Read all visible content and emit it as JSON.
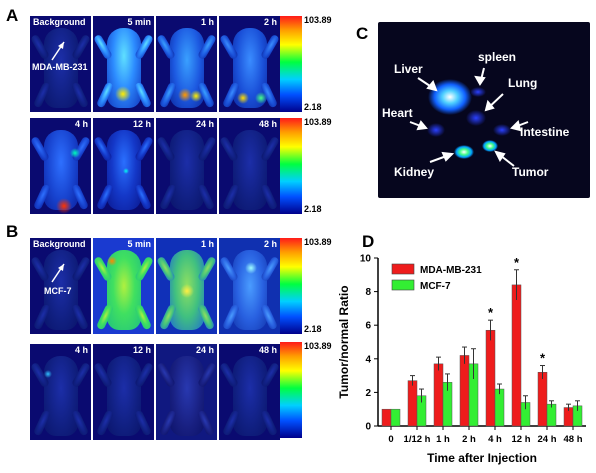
{
  "panels": {
    "A": {
      "letter": "A",
      "tiles_row1": [
        {
          "label": "Background",
          "left": true
        },
        {
          "label": "5 min"
        },
        {
          "label": "1 h"
        },
        {
          "label": "2 h"
        }
      ],
      "tiles_row2": [
        {
          "label": "4 h"
        },
        {
          "label": "12 h"
        },
        {
          "label": "24 h"
        },
        {
          "label": "48 h"
        }
      ],
      "cell_line": "MDA-MB-231",
      "scale_max": "103.89",
      "scale_min": "2.18"
    },
    "B": {
      "letter": "B",
      "tiles_row1": [
        {
          "label": "Background",
          "left": true
        },
        {
          "label": "5 min"
        },
        {
          "label": "1 h"
        },
        {
          "label": "2 h"
        }
      ],
      "tiles_row2": [
        {
          "label": "4 h"
        },
        {
          "label": "12 h"
        },
        {
          "label": "24 h"
        },
        {
          "label": "48 h"
        }
      ],
      "cell_line": "MCF-7",
      "scale_max": "103.89",
      "scale_min": "2.18"
    },
    "C": {
      "letter": "C",
      "organs": [
        "Liver",
        "spleen",
        "Lung",
        "Heart",
        "Intestine",
        "Kidney",
        "Tumor"
      ]
    },
    "D": {
      "letter": "D"
    }
  },
  "chart_data": {
    "type": "bar",
    "categories": [
      "0",
      "1/12 h",
      "1 h",
      "2 h",
      "4 h",
      "12 h",
      "24 h",
      "48 h"
    ],
    "series": [
      {
        "name": "MDA-MB-231",
        "color": "#ee1c1c",
        "values": [
          1.0,
          2.7,
          3.7,
          4.2,
          5.7,
          8.4,
          3.2,
          1.1
        ],
        "errors": [
          0.0,
          0.3,
          0.4,
          0.5,
          0.6,
          0.9,
          0.4,
          0.2
        ]
      },
      {
        "name": "MCF-7",
        "color": "#33ee33",
        "values": [
          1.0,
          1.8,
          2.6,
          3.7,
          2.2,
          1.4,
          1.3,
          1.2
        ],
        "errors": [
          0.0,
          0.4,
          0.5,
          0.9,
          0.3,
          0.4,
          0.2,
          0.3
        ]
      }
    ],
    "significance": [
      "",
      "",
      "",
      "",
      "*",
      "*",
      "*",
      ""
    ],
    "xlabel": "Time after Injection",
    "ylabel": "Tumor/normal Ratio",
    "ylim": [
      0,
      10
    ],
    "yticks": [
      "0",
      "2",
      "4",
      "6",
      "8",
      "10"
    ],
    "legend_position": "top-left"
  }
}
